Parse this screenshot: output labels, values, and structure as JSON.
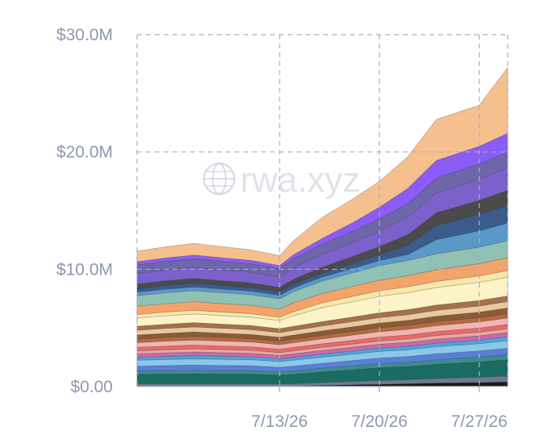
{
  "chart_data": {
    "type": "area",
    "stacked": true,
    "title": "",
    "xlabel": "",
    "ylabel": "",
    "x": [
      "7/3/26",
      "7/5/26",
      "7/7/26",
      "7/9/26",
      "7/11/26",
      "7/13/26",
      "7/14/26",
      "7/16/26",
      "7/18/26",
      "7/20/26",
      "7/22/26",
      "7/24/26",
      "7/27/26",
      "7/29/26"
    ],
    "x_ticks": [
      "7/13/26",
      "7/20/26",
      "7/27/26"
    ],
    "y_ticks": [
      "$0.00",
      "$10.0M",
      "$20.0M",
      "$30.0M"
    ],
    "ylim": [
      0,
      30000000
    ],
    "grid": true,
    "watermark": "rwa.xyz",
    "series": [
      {
        "color": "#1a1a1a",
        "values": [
          50000,
          50000,
          50000,
          50000,
          50000,
          50000,
          50000,
          100000,
          150000,
          200000,
          250000,
          300000,
          350000,
          400000
        ]
      },
      {
        "color": "#6f7a8a",
        "values": [
          200000,
          200000,
          200000,
          200000,
          200000,
          180000,
          200000,
          250000,
          280000,
          320000,
          350000,
          400000,
          450000,
          500000
        ]
      },
      {
        "color": "#1a6b60",
        "values": [
          800000,
          820000,
          850000,
          830000,
          820000,
          750000,
          800000,
          900000,
          1000000,
          1100000,
          1100000,
          1200000,
          1300000,
          1400000
        ]
      },
      {
        "color": "#3d8c8c",
        "values": [
          300000,
          300000,
          300000,
          300000,
          300000,
          280000,
          300000,
          320000,
          340000,
          360000,
          380000,
          400000,
          420000,
          440000
        ]
      },
      {
        "color": "#5b7fd6",
        "values": [
          400000,
          420000,
          430000,
          420000,
          410000,
          390000,
          400000,
          420000,
          440000,
          460000,
          480000,
          500000,
          520000,
          540000
        ]
      },
      {
        "color": "#8ac9e8",
        "values": [
          500000,
          520000,
          530000,
          520000,
          510000,
          480000,
          500000,
          520000,
          540000,
          560000,
          580000,
          600000,
          620000,
          640000
        ]
      },
      {
        "color": "#4fa3d9",
        "values": [
          250000,
          260000,
          270000,
          260000,
          250000,
          240000,
          250000,
          260000,
          270000,
          280000,
          290000,
          300000,
          310000,
          320000
        ]
      },
      {
        "color": "#c56aa8",
        "values": [
          300000,
          310000,
          320000,
          310000,
          300000,
          290000,
          300000,
          310000,
          320000,
          330000,
          340000,
          350000,
          360000,
          370000
        ]
      },
      {
        "color": "#e8a9a0",
        "values": [
          250000,
          260000,
          270000,
          260000,
          250000,
          240000,
          250000,
          260000,
          270000,
          280000,
          290000,
          300000,
          310000,
          320000
        ]
      },
      {
        "color": "#e86a6a",
        "values": [
          300000,
          310000,
          320000,
          310000,
          300000,
          290000,
          300000,
          310000,
          320000,
          330000,
          340000,
          350000,
          360000,
          370000
        ]
      },
      {
        "color": "#f2b5b0",
        "values": [
          400000,
          420000,
          430000,
          420000,
          410000,
          390000,
          400000,
          420000,
          440000,
          460000,
          480000,
          500000,
          520000,
          540000
        ]
      },
      {
        "color": "#b56a3e",
        "values": [
          300000,
          310000,
          320000,
          310000,
          300000,
          290000,
          300000,
          310000,
          320000,
          330000,
          340000,
          350000,
          360000,
          370000
        ]
      },
      {
        "color": "#8c5a33",
        "values": [
          350000,
          360000,
          370000,
          360000,
          350000,
          340000,
          350000,
          370000,
          390000,
          410000,
          430000,
          450000,
          470000,
          490000
        ]
      },
      {
        "color": "#e8c9a0",
        "values": [
          400000,
          420000,
          430000,
          420000,
          410000,
          390000,
          400000,
          420000,
          440000,
          460000,
          480000,
          500000,
          520000,
          540000
        ]
      },
      {
        "color": "#a67048",
        "values": [
          350000,
          360000,
          370000,
          360000,
          350000,
          340000,
          350000,
          370000,
          390000,
          410000,
          430000,
          450000,
          470000,
          490000
        ]
      },
      {
        "color": "#fdf3c8",
        "values": [
          700000,
          720000,
          730000,
          720000,
          710000,
          690000,
          900000,
          1200000,
          1300000,
          1400000,
          1450000,
          1500000,
          1550000,
          1600000
        ]
      },
      {
        "color": "#f9e7a8",
        "values": [
          300000,
          310000,
          320000,
          310000,
          300000,
          290000,
          350000,
          400000,
          450000,
          480000,
          500000,
          520000,
          540000,
          560000
        ]
      },
      {
        "color": "#f4a36b",
        "values": [
          700000,
          720000,
          730000,
          720000,
          710000,
          690000,
          750000,
          800000,
          850000,
          900000,
          950000,
          1000000,
          1050000,
          1100000
        ]
      },
      {
        "color": "#8fc2b4",
        "values": [
          900000,
          920000,
          930000,
          920000,
          910000,
          880000,
          950000,
          1050000,
          1150000,
          1250000,
          1300000,
          1350000,
          1400000,
          1450000
        ]
      },
      {
        "color": "#5a98c8",
        "values": [
          300000,
          310000,
          320000,
          310000,
          300000,
          290000,
          320000,
          350000,
          380000,
          420000,
          500000,
          1200000,
          1400000,
          1500000
        ]
      },
      {
        "color": "#3a5b8c",
        "values": [
          300000,
          310000,
          320000,
          310000,
          300000,
          290000,
          320000,
          350000,
          400000,
          500000,
          800000,
          1200000,
          1400000,
          1500000
        ]
      },
      {
        "color": "#4a4a4a",
        "values": [
          400000,
          410000,
          420000,
          410000,
          400000,
          390000,
          420000,
          500000,
          600000,
          700000,
          900000,
          1100000,
          1200000,
          1300000
        ]
      },
      {
        "color": "#7b61c9",
        "values": [
          900000,
          920000,
          930000,
          920000,
          910000,
          880000,
          1000000,
          1100000,
          1200000,
          1300000,
          1500000,
          1700000,
          1800000,
          1900000
        ]
      },
      {
        "color": "#6d66a8",
        "values": [
          700000,
          720000,
          730000,
          720000,
          710000,
          690000,
          750000,
          850000,
          950000,
          1050000,
          1150000,
          1250000,
          1300000,
          1350000
        ]
      },
      {
        "color": "#8b5cf6",
        "values": [
          300000,
          310000,
          320000,
          310000,
          300000,
          290000,
          350000,
          500000,
          700000,
          1000000,
          1300000,
          1500000,
          1500000,
          1600000
        ]
      },
      {
        "color": "#f5bf8e",
        "values": [
          900000,
          950000,
          1000000,
          950000,
          900000,
          850000,
          1200000,
          1800000,
          2000000,
          2200000,
          2700000,
          3500000,
          3500000,
          5600000
        ]
      }
    ]
  }
}
